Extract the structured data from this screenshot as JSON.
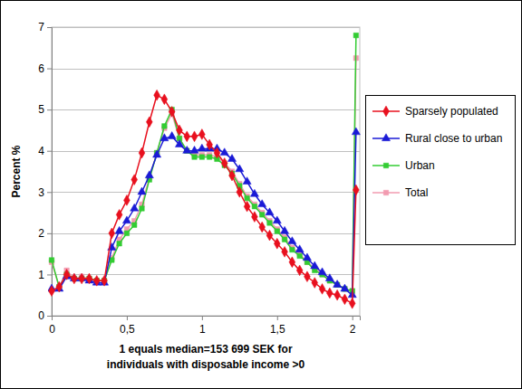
{
  "chart_data": {
    "type": "line",
    "xlabel": [
      "1 equals median=153 699 SEK for",
      "individuals with disposable income >0"
    ],
    "ylabel": "Percent %",
    "x": [
      0,
      0.05,
      0.1,
      0.15,
      0.2,
      0.25,
      0.3,
      0.35,
      0.4,
      0.45,
      0.5,
      0.55,
      0.6,
      0.65,
      0.7,
      0.75,
      0.8,
      0.85,
      0.9,
      0.95,
      1.0,
      1.05,
      1.1,
      1.15,
      1.2,
      1.25,
      1.3,
      1.35,
      1.4,
      1.45,
      1.5,
      1.55,
      1.6,
      1.65,
      1.7,
      1.75,
      1.8,
      1.85,
      1.9,
      1.95,
      2.0,
      2.025
    ],
    "series": [
      {
        "name": "Sparsely populated",
        "color": "#e8101e",
        "marker": "diamond",
        "line_style": "solid",
        "values": [
          0.6,
          0.7,
          1.0,
          0.9,
          0.9,
          0.9,
          0.85,
          0.85,
          2.0,
          2.45,
          2.8,
          3.3,
          3.95,
          4.7,
          5.35,
          5.25,
          4.95,
          4.5,
          4.35,
          4.35,
          4.4,
          4.15,
          3.95,
          3.7,
          3.4,
          3.0,
          2.65,
          2.4,
          2.15,
          1.95,
          1.75,
          1.55,
          1.3,
          1.1,
          0.95,
          0.8,
          0.65,
          0.55,
          0.5,
          0.4,
          0.3,
          3.05
        ]
      },
      {
        "name": "Rural close to urban",
        "color": "#1a1ad6",
        "marker": "triangle",
        "line_style": "solid",
        "values": [
          0.65,
          0.65,
          0.95,
          0.9,
          0.9,
          0.85,
          0.8,
          0.8,
          1.65,
          2.05,
          2.3,
          2.6,
          3.0,
          3.4,
          3.9,
          4.3,
          4.35,
          4.15,
          4.0,
          4.0,
          4.05,
          4.05,
          4.05,
          3.95,
          3.8,
          3.55,
          3.25,
          2.95,
          2.7,
          2.5,
          2.3,
          2.05,
          1.8,
          1.6,
          1.4,
          1.2,
          1.05,
          0.9,
          0.75,
          0.65,
          0.5,
          4.45
        ]
      },
      {
        "name": "Urban",
        "color": "#33cc33",
        "marker": "square",
        "line_style": "solid",
        "values": [
          1.35,
          0.7,
          1.0,
          0.9,
          0.9,
          0.9,
          0.85,
          0.85,
          1.35,
          1.75,
          2.0,
          2.2,
          2.6,
          3.3,
          3.95,
          4.6,
          5.0,
          4.3,
          4.0,
          3.85,
          3.85,
          3.85,
          3.8,
          3.65,
          3.45,
          3.15,
          2.85,
          2.65,
          2.45,
          2.25,
          2.05,
          1.85,
          1.6,
          1.45,
          1.3,
          1.1,
          1.0,
          0.85,
          0.75,
          0.65,
          0.6,
          6.8
        ]
      },
      {
        "name": "Total",
        "color": "#f29bb0",
        "marker": "square",
        "line_style": "solid",
        "values": [
          1.3,
          0.7,
          1.1,
          0.9,
          0.95,
          0.9,
          0.85,
          0.85,
          1.4,
          1.85,
          2.1,
          2.3,
          2.7,
          3.35,
          3.95,
          4.55,
          4.9,
          4.3,
          4.0,
          3.9,
          3.9,
          3.9,
          3.85,
          3.7,
          3.5,
          3.2,
          2.9,
          2.7,
          2.5,
          2.3,
          2.1,
          1.9,
          1.65,
          1.5,
          1.3,
          1.15,
          1.0,
          0.85,
          0.75,
          0.65,
          0.6,
          6.25
        ]
      }
    ],
    "xlim": [
      0,
      2.05
    ],
    "xticks": [
      0,
      {
        "value": 0.5,
        "label": "0,5"
      },
      1,
      {
        "value": 1.5,
        "label": "1,5"
      },
      2
    ],
    "ylim": [
      0,
      7
    ],
    "yticks": [
      0,
      1,
      2,
      3,
      4,
      5,
      6,
      7
    ],
    "grid": true,
    "legend": "right"
  }
}
